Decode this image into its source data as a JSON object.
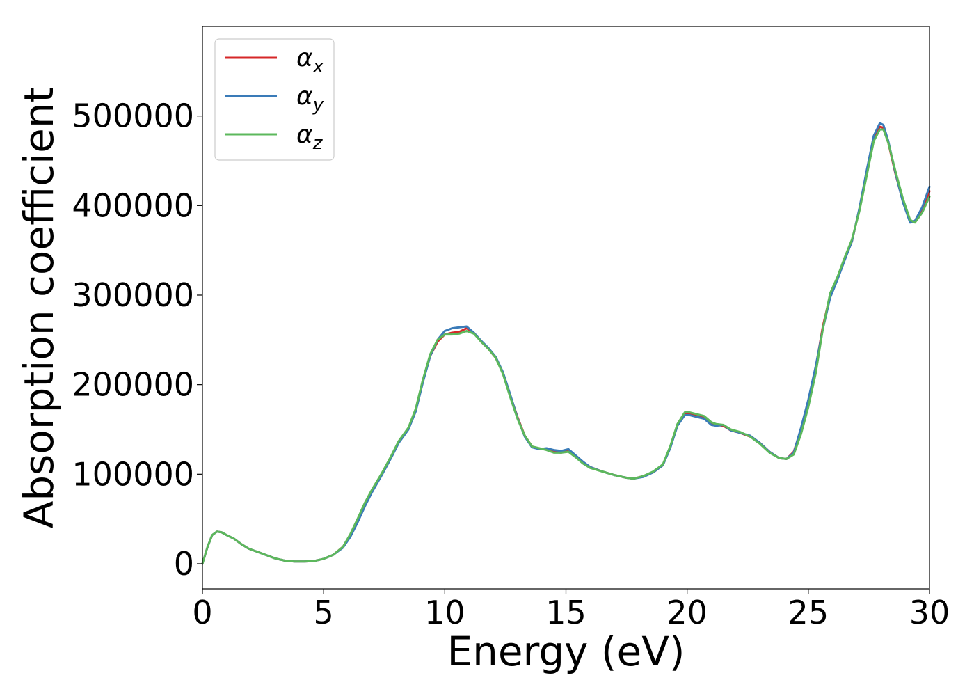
{
  "chart_data": {
    "type": "line",
    "title": "",
    "xlabel": "Energy (eV)",
    "ylabel": "Absorption coefficient",
    "xlim": [
      0,
      30
    ],
    "ylim": [
      -28000,
      600000
    ],
    "xticks": [
      0,
      5,
      10,
      15,
      20,
      25,
      30
    ],
    "yticks": [
      0,
      100000,
      200000,
      300000,
      400000,
      500000
    ],
    "grid": false,
    "legend_position": "top-left",
    "series": [
      {
        "name": "αx",
        "legend_symbol": "α",
        "legend_sub": "x",
        "color": "#d62728",
        "x": [
          0,
          0.2,
          0.4,
          0.6,
          0.8,
          1.0,
          1.3,
          1.6,
          1.9,
          2.2,
          2.6,
          3.0,
          3.4,
          3.8,
          4.2,
          4.6,
          5.0,
          5.4,
          5.8,
          6.1,
          6.4,
          6.7,
          7.0,
          7.4,
          7.8,
          8.1,
          8.5,
          8.8,
          9.1,
          9.4,
          9.7,
          10.0,
          10.3,
          10.6,
          10.9,
          11.2,
          11.5,
          11.8,
          12.1,
          12.4,
          12.7,
          13.0,
          13.3,
          13.6,
          13.9,
          14.2,
          14.5,
          14.8,
          15.1,
          15.4,
          15.7,
          16.0,
          16.5,
          17.0,
          17.5,
          17.8,
          18.2,
          18.6,
          19.0,
          19.3,
          19.6,
          19.9,
          20.1,
          20.4,
          20.7,
          21.0,
          21.2,
          21.5,
          21.8,
          22.2,
          22.6,
          23.0,
          23.4,
          23.8,
          24.1,
          24.4,
          24.7,
          25.0,
          25.3,
          25.6,
          25.9,
          26.2,
          26.5,
          26.8,
          27.1,
          27.4,
          27.7,
          27.95,
          28.1,
          28.3,
          28.6,
          28.9,
          29.2,
          29.4,
          29.7,
          30.0
        ],
        "y": [
          0,
          18000,
          32000,
          36000,
          35000,
          32000,
          28000,
          22000,
          17000,
          14000,
          10000,
          6000,
          3500,
          2500,
          2500,
          3000,
          5500,
          10000,
          19000,
          32000,
          48000,
          66000,
          82000,
          100000,
          120000,
          136000,
          151000,
          172000,
          205000,
          232000,
          248000,
          256000,
          258000,
          259000,
          263000,
          258000,
          248000,
          240000,
          230000,
          213000,
          188000,
          164000,
          143000,
          131000,
          128000,
          128000,
          125000,
          124000,
          126000,
          120000,
          113000,
          108000,
          103000,
          99000,
          96000,
          95000,
          98000,
          102000,
          110000,
          130000,
          155000,
          168000,
          168000,
          165000,
          163000,
          156000,
          155000,
          154000,
          149000,
          146000,
          142000,
          135000,
          125000,
          118000,
          117000,
          125000,
          150000,
          180000,
          218000,
          265000,
          300000,
          318000,
          340000,
          360000,
          395000,
          435000,
          475000,
          488000,
          487000,
          470000,
          435000,
          405000,
          382000,
          382000,
          395000,
          416000
        ]
      },
      {
        "name": "αy",
        "legend_symbol": "α",
        "legend_sub": "y",
        "color": "#3a7bb8",
        "x": [
          0,
          0.2,
          0.4,
          0.6,
          0.8,
          1.0,
          1.3,
          1.6,
          1.9,
          2.2,
          2.6,
          3.0,
          3.4,
          3.8,
          4.2,
          4.6,
          5.0,
          5.4,
          5.8,
          6.1,
          6.4,
          6.7,
          7.0,
          7.4,
          7.8,
          8.1,
          8.5,
          8.8,
          9.1,
          9.4,
          9.7,
          10.0,
          10.3,
          10.6,
          10.9,
          11.2,
          11.5,
          11.8,
          12.1,
          12.4,
          12.7,
          13.0,
          13.3,
          13.6,
          13.9,
          14.2,
          14.5,
          14.8,
          15.1,
          15.4,
          15.7,
          16.0,
          16.5,
          17.0,
          17.5,
          17.8,
          18.2,
          18.6,
          19.0,
          19.3,
          19.6,
          19.9,
          20.1,
          20.4,
          20.7,
          21.0,
          21.2,
          21.5,
          21.8,
          22.2,
          22.6,
          23.0,
          23.4,
          23.8,
          24.1,
          24.4,
          24.7,
          25.0,
          25.3,
          25.6,
          25.9,
          26.2,
          26.5,
          26.8,
          27.1,
          27.4,
          27.7,
          27.95,
          28.1,
          28.3,
          28.6,
          28.9,
          29.2,
          29.4,
          29.7,
          30.0
        ],
        "y": [
          0,
          18000,
          32000,
          36000,
          35000,
          32000,
          28000,
          22000,
          17000,
          14000,
          10000,
          6000,
          3500,
          2500,
          2500,
          3000,
          5500,
          10000,
          18000,
          30000,
          46000,
          64000,
          80000,
          99000,
          119000,
          135000,
          150000,
          170000,
          203000,
          232000,
          250000,
          260000,
          263000,
          264000,
          265000,
          258000,
          249000,
          241000,
          231000,
          214000,
          189000,
          163000,
          142000,
          130000,
          128000,
          129000,
          127000,
          126000,
          128000,
          121000,
          114000,
          108000,
          103000,
          99000,
          96000,
          95000,
          97000,
          102000,
          110000,
          129000,
          154000,
          166000,
          166000,
          164000,
          162000,
          155000,
          154000,
          155000,
          149000,
          146000,
          143000,
          135000,
          125000,
          118000,
          117000,
          124000,
          152000,
          183000,
          220000,
          262000,
          297000,
          317000,
          339000,
          360000,
          396000,
          438000,
          478000,
          492000,
          490000,
          472000,
          436000,
          404000,
          381000,
          383000,
          398000,
          421000
        ]
      },
      {
        "name": "αz",
        "legend_symbol": "α",
        "legend_sub": "z",
        "color": "#5cb85c",
        "x": [
          0,
          0.2,
          0.4,
          0.6,
          0.8,
          1.0,
          1.3,
          1.6,
          1.9,
          2.2,
          2.6,
          3.0,
          3.4,
          3.8,
          4.2,
          4.6,
          5.0,
          5.4,
          5.8,
          6.1,
          6.4,
          6.7,
          7.0,
          7.4,
          7.8,
          8.1,
          8.5,
          8.8,
          9.1,
          9.4,
          9.7,
          10.0,
          10.3,
          10.6,
          10.9,
          11.2,
          11.5,
          11.8,
          12.1,
          12.4,
          12.7,
          13.0,
          13.3,
          13.6,
          13.9,
          14.2,
          14.5,
          14.8,
          15.1,
          15.4,
          15.7,
          16.0,
          16.5,
          17.0,
          17.5,
          17.8,
          18.2,
          18.6,
          19.0,
          19.3,
          19.6,
          19.9,
          20.1,
          20.4,
          20.7,
          21.0,
          21.2,
          21.5,
          21.8,
          22.2,
          22.6,
          23.0,
          23.4,
          23.8,
          24.1,
          24.4,
          24.7,
          25.0,
          25.3,
          25.6,
          25.9,
          26.2,
          26.5,
          26.8,
          27.1,
          27.4,
          27.7,
          27.95,
          28.1,
          28.3,
          28.6,
          28.9,
          29.2,
          29.4,
          29.7,
          30.0
        ],
        "y": [
          0,
          18000,
          32000,
          36000,
          35000,
          32000,
          28000,
          22000,
          17000,
          14000,
          10000,
          6000,
          3500,
          2500,
          2500,
          3000,
          5500,
          10000,
          19000,
          33000,
          50000,
          68000,
          83000,
          101000,
          121000,
          137000,
          152000,
          173000,
          206000,
          234000,
          250000,
          256000,
          256000,
          257000,
          260000,
          257000,
          248000,
          240000,
          230000,
          212000,
          186000,
          162000,
          143000,
          131000,
          129000,
          127000,
          124000,
          124000,
          125000,
          119000,
          112000,
          107000,
          103000,
          99000,
          96000,
          95000,
          98000,
          103000,
          111000,
          131000,
          156000,
          169000,
          169000,
          167000,
          165000,
          158000,
          156000,
          155000,
          150000,
          147000,
          142000,
          134000,
          124000,
          118000,
          117000,
          122000,
          145000,
          175000,
          212000,
          262000,
          302000,
          320000,
          342000,
          362000,
          393000,
          432000,
          472000,
          485000,
          485000,
          470000,
          438000,
          408000,
          384000,
          381000,
          392000,
          410000
        ]
      }
    ]
  }
}
